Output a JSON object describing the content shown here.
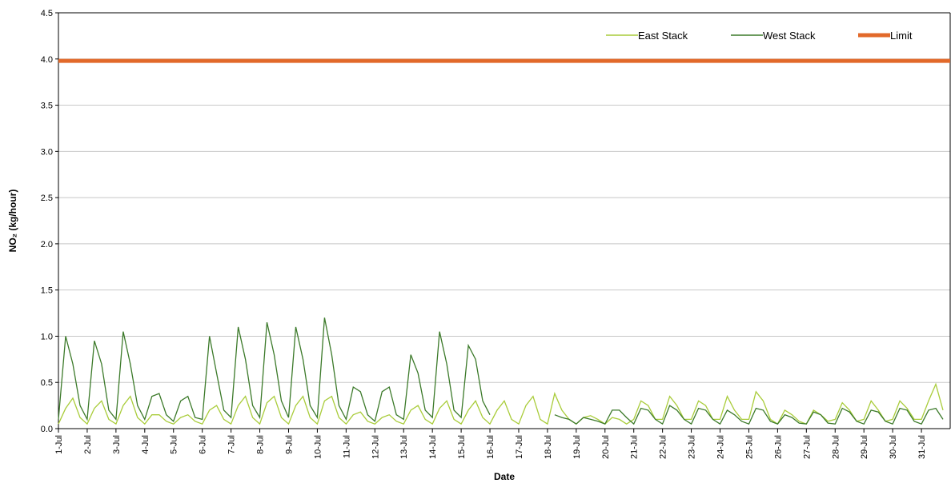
{
  "chart_data": {
    "type": "line",
    "ylabel": "NO₂ (kg/hour)",
    "xlabel": "Date",
    "categories": [
      "1-Jul",
      null,
      null,
      null,
      "2-Jul",
      null,
      null,
      null,
      "3-Jul",
      null,
      null,
      null,
      "4-Jul",
      null,
      null,
      null,
      "5-Jul",
      null,
      null,
      null,
      "6-Jul",
      null,
      null,
      null,
      "7-Jul",
      null,
      null,
      null,
      "8-Jul",
      null,
      null,
      null,
      "9-Jul",
      null,
      null,
      null,
      "10-Jul",
      null,
      null,
      null,
      "11-Jul",
      null,
      null,
      null,
      "12-Jul",
      null,
      null,
      null,
      "13-Jul",
      null,
      null,
      null,
      "14-Jul",
      null,
      null,
      null,
      "15-Jul",
      null,
      null,
      null,
      "16-Jul",
      null,
      null,
      null,
      "17-Jul",
      null,
      null,
      null,
      "18-Jul",
      null,
      null,
      null,
      "19-Jul",
      null,
      null,
      null,
      "20-Jul",
      null,
      null,
      null,
      "21-Jul",
      null,
      null,
      null,
      "22-Jul",
      null,
      null,
      null,
      "23-Jul",
      null,
      null,
      null,
      "24-Jul",
      null,
      null,
      null,
      "25-Jul",
      null,
      null,
      null,
      "26-Jul",
      null,
      null,
      null,
      "27-Jul",
      null,
      null,
      null,
      "28-Jul",
      null,
      null,
      null,
      "29-Jul",
      null,
      null,
      null,
      "30-Jul",
      null,
      null,
      null,
      "31-Jul",
      null,
      null,
      null
    ],
    "series": [
      {
        "name": "East Stack",
        "color": "#a9cc3a",
        "values": [
          0.05,
          0.22,
          0.33,
          0.12,
          0.05,
          0.22,
          0.3,
          0.1,
          0.05,
          0.25,
          0.35,
          0.12,
          0.05,
          0.15,
          0.15,
          0.08,
          0.05,
          0.12,
          0.15,
          0.08,
          0.05,
          0.2,
          0.25,
          0.1,
          0.05,
          0.25,
          0.35,
          0.12,
          0.05,
          0.28,
          0.35,
          0.12,
          0.05,
          0.25,
          0.35,
          0.12,
          0.05,
          0.3,
          0.35,
          0.12,
          0.05,
          0.15,
          0.18,
          0.08,
          0.05,
          0.12,
          0.15,
          0.08,
          0.05,
          0.2,
          0.25,
          0.1,
          0.05,
          0.22,
          0.3,
          0.1,
          0.05,
          0.2,
          0.3,
          0.12,
          0.05,
          0.2,
          0.3,
          0.1,
          0.05,
          0.25,
          0.35,
          0.1,
          0.05,
          0.38,
          0.2,
          0.1,
          0.05,
          0.12,
          0.14,
          0.1,
          0.05,
          0.12,
          0.1,
          0.05,
          0.1,
          0.3,
          0.25,
          0.1,
          0.1,
          0.35,
          0.25,
          0.1,
          0.1,
          0.3,
          0.25,
          0.1,
          0.1,
          0.35,
          0.2,
          0.1,
          0.1,
          0.4,
          0.3,
          0.1,
          0.05,
          0.2,
          0.15,
          0.08,
          0.05,
          0.2,
          0.15,
          0.08,
          0.1,
          0.28,
          0.2,
          0.08,
          0.1,
          0.3,
          0.2,
          0.08,
          0.1,
          0.3,
          0.22,
          0.1,
          0.1,
          0.3,
          0.48,
          0.2
        ]
      },
      {
        "name": "West Stack",
        "color": "#3c7a2a",
        "values": [
          0.1,
          1.0,
          0.7,
          0.25,
          0.1,
          0.95,
          0.7,
          0.2,
          0.1,
          1.05,
          0.7,
          0.25,
          0.1,
          0.35,
          0.38,
          0.15,
          0.08,
          0.3,
          0.35,
          0.12,
          0.1,
          1.0,
          0.6,
          0.2,
          0.12,
          1.1,
          0.75,
          0.25,
          0.12,
          1.15,
          0.8,
          0.3,
          0.12,
          1.1,
          0.75,
          0.25,
          0.12,
          1.2,
          0.8,
          0.25,
          0.1,
          0.45,
          0.4,
          0.15,
          0.08,
          0.4,
          0.45,
          0.15,
          0.1,
          0.8,
          0.6,
          0.2,
          0.12,
          1.05,
          0.7,
          0.2,
          0.12,
          0.9,
          0.75,
          0.3,
          0.15,
          null,
          null,
          null,
          null,
          null,
          null,
          null,
          null,
          0.15,
          0.12,
          0.1,
          0.05,
          0.12,
          0.1,
          0.08,
          0.05,
          0.2,
          0.2,
          0.12,
          0.05,
          0.22,
          0.2,
          0.1,
          0.05,
          0.25,
          0.2,
          0.1,
          0.05,
          0.22,
          0.2,
          0.1,
          0.05,
          0.2,
          0.15,
          0.08,
          0.05,
          0.22,
          0.2,
          0.08,
          0.05,
          0.15,
          0.12,
          0.06,
          0.05,
          0.18,
          0.15,
          0.06,
          0.05,
          0.22,
          0.18,
          0.08,
          0.05,
          0.2,
          0.18,
          0.08,
          0.05,
          0.22,
          0.2,
          0.08,
          0.05,
          0.2,
          0.22,
          0.1
        ]
      }
    ],
    "limit": {
      "name": "Limit",
      "color": "#e2692a",
      "value": 3.98
    },
    "ylim": [
      0,
      4.5
    ],
    "yticks": [
      {
        "value": 0,
        "label": "0.0"
      },
      0.5,
      {
        "value": 1,
        "label": "1.0"
      },
      1.5,
      {
        "value": 2,
        "label": "2.0"
      },
      2.5,
      {
        "value": 3,
        "label": "3.0"
      },
      3.5,
      {
        "value": 4,
        "label": "4.0"
      },
      4.5
    ],
    "grid": true,
    "legend": "top-right"
  }
}
